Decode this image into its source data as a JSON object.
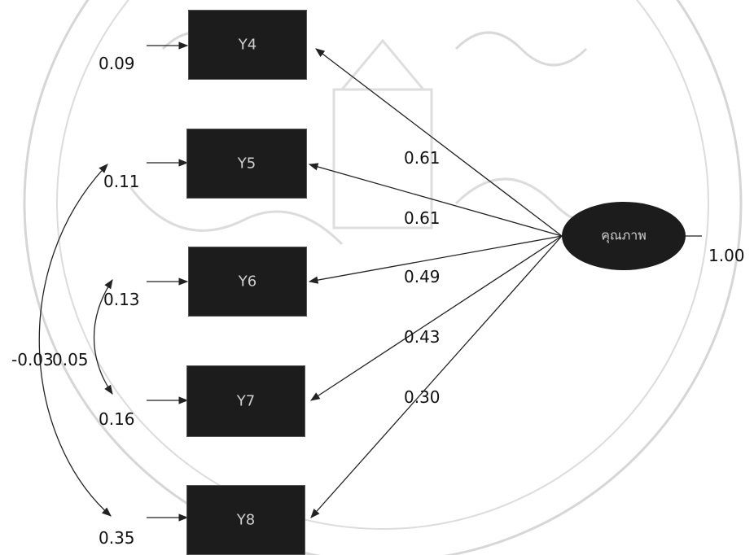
{
  "colors": {
    "node_fill": "#1c1c1c",
    "line": "#222222",
    "watermark": "#cfcfcf"
  },
  "indicators": [
    {
      "name": "Y4",
      "error_variance": "0.09",
      "loading": "0.61"
    },
    {
      "name": "Y5",
      "error_variance": "0.11",
      "loading": "0.61"
    },
    {
      "name": "Y6",
      "error_variance": "0.13",
      "loading": "0.49"
    },
    {
      "name": "Y7",
      "error_variance": "0.16",
      "loading": "0.43"
    },
    {
      "name": "Y8",
      "error_variance": "0.35",
      "loading": "0.30"
    }
  ],
  "latent": {
    "name": "คุณภาพ",
    "variance": "1.00"
  },
  "covariances": [
    {
      "between": [
        "Y5",
        "Y8"
      ],
      "value": "-0.03"
    },
    {
      "between": [
        "Y6",
        "Y7"
      ],
      "value": "0.05"
    }
  ]
}
